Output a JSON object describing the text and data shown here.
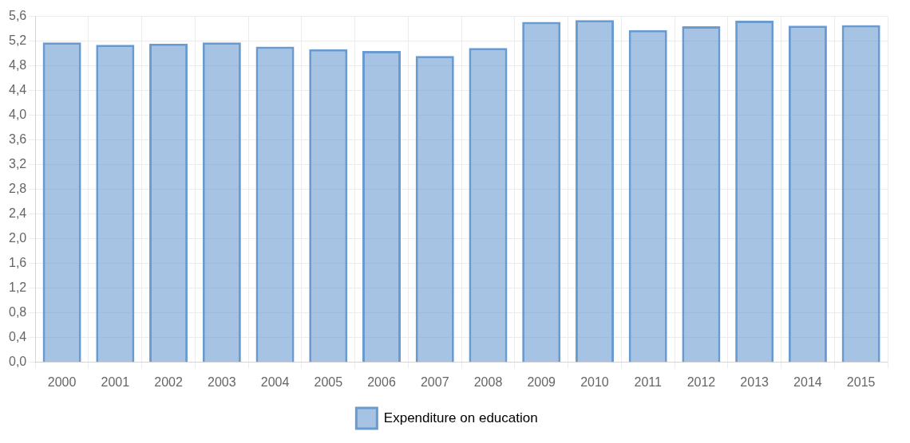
{
  "chart_data": {
    "type": "bar",
    "categories": [
      "2000",
      "2001",
      "2002",
      "2003",
      "2004",
      "2005",
      "2006",
      "2007",
      "2008",
      "2009",
      "2010",
      "2011",
      "2012",
      "2013",
      "2014",
      "2015"
    ],
    "series": [
      {
        "name": "Expenditure on education",
        "color": "#6a9bd0",
        "values": [
          5.18,
          5.14,
          5.16,
          5.18,
          5.11,
          5.07,
          5.04,
          4.96,
          5.09,
          5.51,
          5.54,
          5.38,
          5.44,
          5.53,
          5.45,
          5.46
        ]
      }
    ],
    "ylim": [
      0,
      5.6
    ],
    "yticks": [
      {
        "value": 0,
        "label": "0,0"
      },
      {
        "value": 0.4,
        "label": "0,4"
      },
      {
        "value": 0.8,
        "label": "0,8"
      },
      {
        "value": 1.2,
        "label": "1,2"
      },
      {
        "value": 1.6,
        "label": "1,6"
      },
      {
        "value": 2.0,
        "label": "2,0"
      },
      {
        "value": 2.4,
        "label": "2,4"
      },
      {
        "value": 2.8,
        "label": "2,8"
      },
      {
        "value": 3.2,
        "label": "3,2"
      },
      {
        "value": 3.6,
        "label": "3,6"
      },
      {
        "value": 4.0,
        "label": "4,0"
      },
      {
        "value": 4.4,
        "label": "4,4"
      },
      {
        "value": 4.8,
        "label": "4,8"
      },
      {
        "value": 5.2,
        "label": "5,2"
      },
      {
        "value": 5.6,
        "label": "5,6"
      }
    ],
    "grid": true,
    "legend": "bottom"
  }
}
